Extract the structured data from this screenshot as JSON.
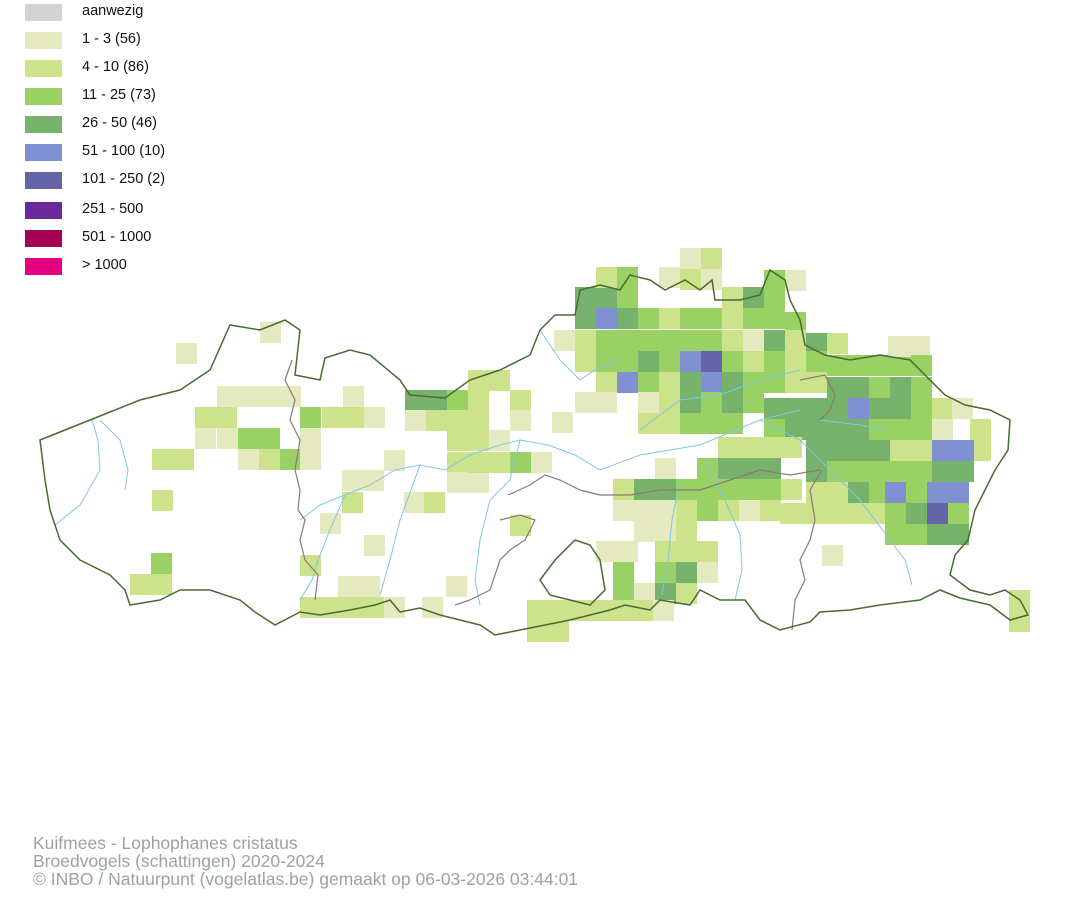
{
  "legend": [
    {
      "label": "aanwezig",
      "color": "#d3d3d3"
    },
    {
      "label": "1 - 3 (56)",
      "color": "#e5e9c0"
    },
    {
      "label": "4 - 10 (86)",
      "color": "#cde38b"
    },
    {
      "label": "11 - 25 (73)",
      "color": "#9ad165"
    },
    {
      "label": "26 - 50 (46)",
      "color": "#76b26c"
    },
    {
      "label": "51 - 100 (10)",
      "color": "#8090d0"
    },
    {
      "label": "101 - 250 (2)",
      "color": "#6564a8"
    },
    {
      "label": "251 - 500",
      "color": "#6a2a9c"
    },
    {
      "label": "501 - 1000",
      "color": "#a50057"
    },
    {
      "label": "> 1000",
      "color": "#e50081"
    }
  ],
  "map": {
    "border_color": "#4a6a34",
    "province_border_color": "#8a7a72",
    "river_color": "#7ec8e3"
  },
  "credits": {
    "line1": "Kuifmees - Lophophanes cristatus",
    "line2": "Broedvogels (schattingen) 2020-2024",
    "line3": "© INBO / Natuurpunt (vogelatlas.be) gemaakt op 06-03-2026 03:44:01"
  }
}
